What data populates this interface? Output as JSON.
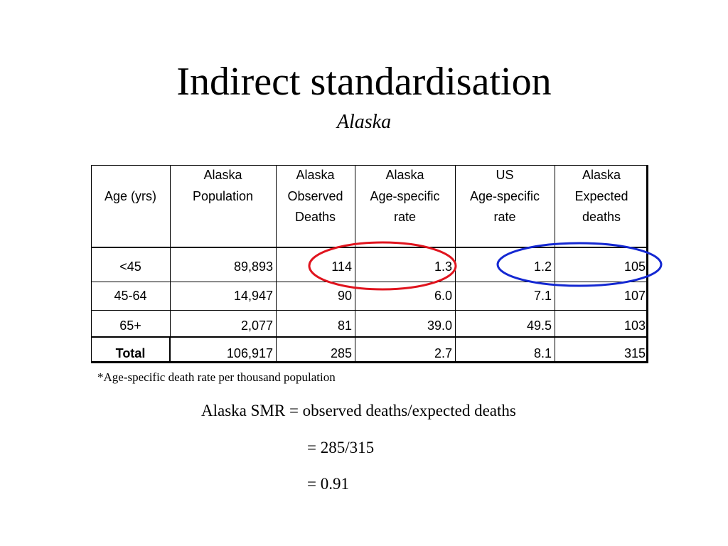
{
  "title": "Indirect standardisation",
  "subtitle": "Alaska",
  "table": {
    "columns": [
      {
        "label": [
          "Age (yrs)"
        ]
      },
      {
        "top": "Alaska",
        "label": [
          "Population"
        ]
      },
      {
        "top": "Alaska",
        "label": [
          "Observed",
          "Deaths"
        ]
      },
      {
        "top": "Alaska",
        "label": [
          "Age-specific",
          "rate"
        ]
      },
      {
        "top": "US",
        "label": [
          "Age-specific",
          "rate"
        ]
      },
      {
        "top": "Alaska",
        "label": [
          "Expected",
          "deaths"
        ]
      }
    ],
    "rows": [
      [
        "<45",
        "89,893",
        "114",
        "1.3",
        "1.2",
        "105"
      ],
      [
        "45-64",
        "14,947",
        "90",
        "6.0",
        "7.1",
        "107"
      ],
      [
        "65+",
        "2,077",
        "81",
        "39.0",
        "49.5",
        "103"
      ],
      [
        "Total",
        "106,917",
        "285",
        "2.7",
        "8.1",
        "315"
      ]
    ]
  },
  "footnote": "*Age-specific death rate per thousand population",
  "formula": [
    "Alaska SMR = observed deaths/expected deaths",
    "= 285/315",
    "= 0.91"
  ]
}
